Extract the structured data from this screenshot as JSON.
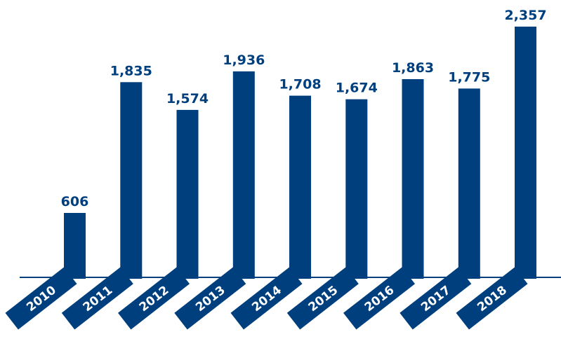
{
  "chart_data": {
    "type": "bar",
    "categories": [
      "2010",
      "2011",
      "2012",
      "2013",
      "2014",
      "2015",
      "2016",
      "2017",
      "2018"
    ],
    "values": [
      606,
      1835,
      1574,
      1936,
      1708,
      1674,
      1863,
      1775,
      2357
    ],
    "value_labels": [
      "606",
      "1,835",
      "1,574",
      "1,936",
      "1,708",
      "1,674",
      "1,863",
      "1,775",
      "2,357"
    ],
    "title": "",
    "xlabel": "",
    "ylabel": "",
    "ylim": [
      0,
      2357
    ],
    "grid": false,
    "bar_color": "#003f7d"
  }
}
